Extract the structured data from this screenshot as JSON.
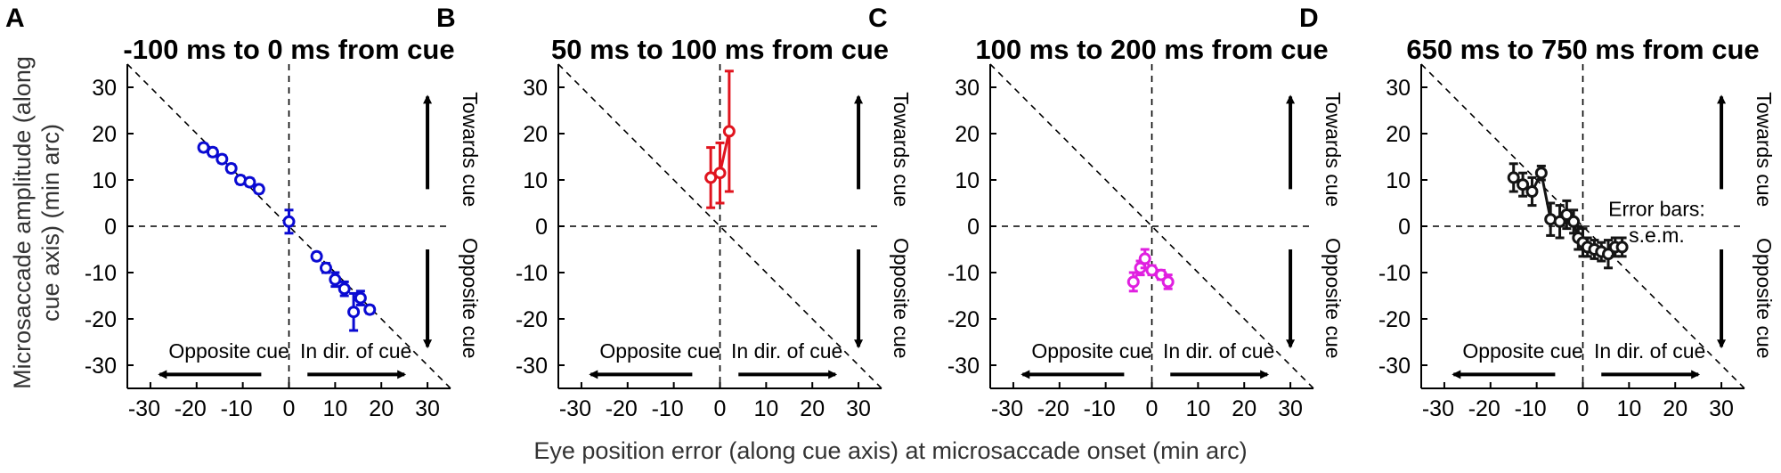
{
  "figure": {
    "xlabel": "Eye position error (along cue axis) at microsaccade onset (min arc)",
    "ylabel_line1": "Microsaccade amplitude (along",
    "ylabel_line2": "cue axis) (min arc)",
    "arrow_labels": {
      "towards": "Towards cue",
      "opposite_vertical": "Opposite cue",
      "opposite_horizontal": "Opposite cue",
      "in_dir": "In dir. of cue"
    },
    "error_bar_note_line1": "Error bars:",
    "error_bar_note_line2": "s.e.m."
  },
  "chart_data": [
    {
      "panel": "A",
      "type": "scatter",
      "title": "-100 ms to 0 ms from cue",
      "color": "#0a0ad2",
      "connect": false,
      "xlim": [
        -35,
        35
      ],
      "ylim": [
        -35,
        35
      ],
      "xticks": [
        -30,
        -20,
        -10,
        0,
        10,
        20,
        30
      ],
      "yticks": [
        30,
        20,
        10,
        0,
        -10,
        -20,
        -30
      ],
      "reference_lines": [
        "y = -x",
        "x = 0",
        "y = 0"
      ],
      "points": [
        {
          "x": -18.5,
          "y": 17,
          "err": 0.8
        },
        {
          "x": -16.5,
          "y": 16,
          "err": 0.8
        },
        {
          "x": -14.5,
          "y": 14.5,
          "err": 0.8
        },
        {
          "x": -12.5,
          "y": 12.5,
          "err": 0.8
        },
        {
          "x": -10.5,
          "y": 10,
          "err": 0.8
        },
        {
          "x": -8.5,
          "y": 9.5,
          "err": 0.8
        },
        {
          "x": -6.5,
          "y": 8,
          "err": 0.8
        },
        {
          "x": 0,
          "y": 1,
          "err": 2.5
        },
        {
          "x": 6,
          "y": -6.5,
          "err": 0.8
        },
        {
          "x": 8,
          "y": -9,
          "err": 1.0
        },
        {
          "x": 10,
          "y": -11.5,
          "err": 1.5
        },
        {
          "x": 12,
          "y": -13.5,
          "err": 1.5
        },
        {
          "x": 14,
          "y": -18.5,
          "err": 4.0
        },
        {
          "x": 15.5,
          "y": -15.5,
          "err": 1.5
        },
        {
          "x": 17.5,
          "y": -18,
          "err": 0.8
        }
      ]
    },
    {
      "panel": "B",
      "type": "line",
      "title": "50 ms to 100 ms from cue",
      "color": "#e0141e",
      "connect": true,
      "xlim": [
        -35,
        35
      ],
      "ylim": [
        -35,
        35
      ],
      "xticks": [
        -30,
        -20,
        -10,
        0,
        10,
        20,
        30
      ],
      "yticks": [
        30,
        20,
        10,
        0,
        -10,
        -20,
        -30
      ],
      "reference_lines": [
        "y = -x",
        "x = 0",
        "y = 0"
      ],
      "points": [
        {
          "x": -2,
          "y": 10.5,
          "err": 6.5
        },
        {
          "x": 0,
          "y": 11.5,
          "err": 6.5
        },
        {
          "x": 2,
          "y": 20.5,
          "err": 13
        }
      ]
    },
    {
      "panel": "C",
      "type": "line",
      "title": "100 ms to 200 ms from cue",
      "color": "#e020e0",
      "connect": true,
      "xlim": [
        -35,
        35
      ],
      "ylim": [
        -35,
        35
      ],
      "xticks": [
        -30,
        -20,
        -10,
        0,
        10,
        20,
        30
      ],
      "yticks": [
        30,
        20,
        10,
        0,
        -10,
        -20,
        -30
      ],
      "reference_lines": [
        "y = -x",
        "x = 0",
        "y = 0"
      ],
      "points": [
        {
          "x": -4,
          "y": -12,
          "err": 2
        },
        {
          "x": -2.5,
          "y": -9,
          "err": 1.5
        },
        {
          "x": -1.5,
          "y": -7,
          "err": 2
        },
        {
          "x": 0,
          "y": -9.5,
          "err": 1
        },
        {
          "x": 2,
          "y": -10.5,
          "err": 1
        },
        {
          "x": 3.5,
          "y": -12,
          "err": 1.5
        }
      ]
    },
    {
      "panel": "D",
      "type": "line",
      "title": "650 ms to 750 ms from cue",
      "color": "#141414",
      "connect": true,
      "xlim": [
        -35,
        35
      ],
      "ylim": [
        -35,
        35
      ],
      "xticks": [
        -30,
        -20,
        -10,
        0,
        10,
        20,
        30
      ],
      "yticks": [
        30,
        20,
        10,
        0,
        -10,
        -20,
        -30
      ],
      "reference_lines": [
        "y = -x",
        "x = 0",
        "y = 0"
      ],
      "points": [
        {
          "x": -15,
          "y": 10.5,
          "err": 3
        },
        {
          "x": -13,
          "y": 9,
          "err": 2.5
        },
        {
          "x": -11,
          "y": 7.5,
          "err": 3
        },
        {
          "x": -9,
          "y": 11.5,
          "err": 1.5
        },
        {
          "x": -7,
          "y": 1.5,
          "err": 3.5
        },
        {
          "x": -5,
          "y": 1,
          "err": 3.5
        },
        {
          "x": -3.5,
          "y": 2.5,
          "err": 3
        },
        {
          "x": -2,
          "y": 1,
          "err": 2.5
        },
        {
          "x": -1,
          "y": -2.5,
          "err": 2.5
        },
        {
          "x": 0,
          "y": -3.5,
          "err": 3
        },
        {
          "x": 1,
          "y": -4.5,
          "err": 2
        },
        {
          "x": 2.5,
          "y": -5,
          "err": 2
        },
        {
          "x": 4,
          "y": -5.5,
          "err": 2
        },
        {
          "x": 5.5,
          "y": -6,
          "err": 3
        },
        {
          "x": 7,
          "y": -4.5,
          "err": 2
        },
        {
          "x": 8.5,
          "y": -4.5,
          "err": 2
        }
      ]
    }
  ]
}
